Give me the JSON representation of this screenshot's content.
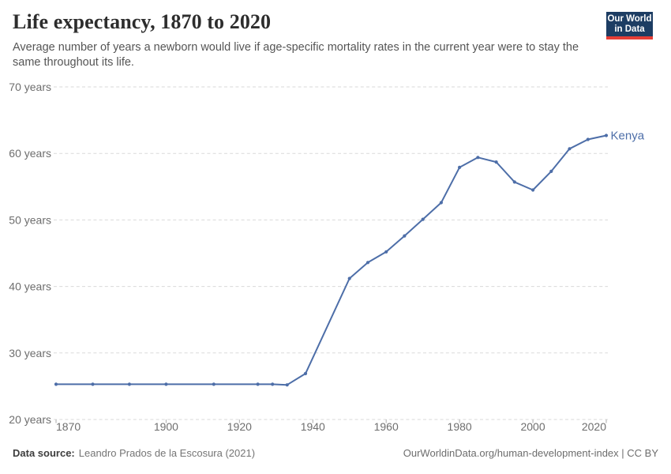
{
  "header": {
    "title": "Life expectancy, 1870 to 2020",
    "subtitle": "Average number of years a newborn would live if age-specific mortality rates in the current year were to stay the same throughout its life.",
    "logo": {
      "line1": "Our World",
      "line2": "in Data",
      "bg_color": "#1d3d63",
      "accent_color": "#e63e36"
    }
  },
  "chart_data": {
    "type": "line",
    "title": "Life expectancy, 1870 to 2020",
    "xlabel": "",
    "ylabel": "",
    "xlim": [
      1870,
      2020
    ],
    "ylim": [
      20,
      70
    ],
    "x_ticks": [
      1870,
      1900,
      1920,
      1940,
      1960,
      1980,
      2000,
      2020
    ],
    "y_ticks": [
      20,
      30,
      40,
      50,
      60,
      70
    ],
    "y_tick_suffix": " years",
    "grid": "horizontal-dashed",
    "legend": "line-end-label",
    "axis_label_color": "#6e6e6e",
    "grid_color": "#dadada",
    "tick_mark_color": "#adadad",
    "series": [
      {
        "name": "Kenya",
        "color": "#4d6ea8",
        "x": [
          1870,
          1880,
          1890,
          1900,
          1913,
          1925,
          1929,
          1933,
          1938,
          1950,
          1955,
          1960,
          1965,
          1970,
          1975,
          1980,
          1985,
          1990,
          1995,
          2000,
          2005,
          2010,
          2015,
          2020
        ],
        "values": [
          25.3,
          25.3,
          25.3,
          25.3,
          25.3,
          25.3,
          25.3,
          25.2,
          26.9,
          41.2,
          43.6,
          45.2,
          47.6,
          50.1,
          52.6,
          57.9,
          59.4,
          58.7,
          55.7,
          54.5,
          57.3,
          60.7,
          62.1,
          62.7
        ]
      }
    ]
  },
  "footer": {
    "datasource_label": "Data source:",
    "datasource_value": "Leandro Prados de la Escosura (2021)",
    "attribution": "OurWorldinData.org/human-development-index | CC BY"
  }
}
